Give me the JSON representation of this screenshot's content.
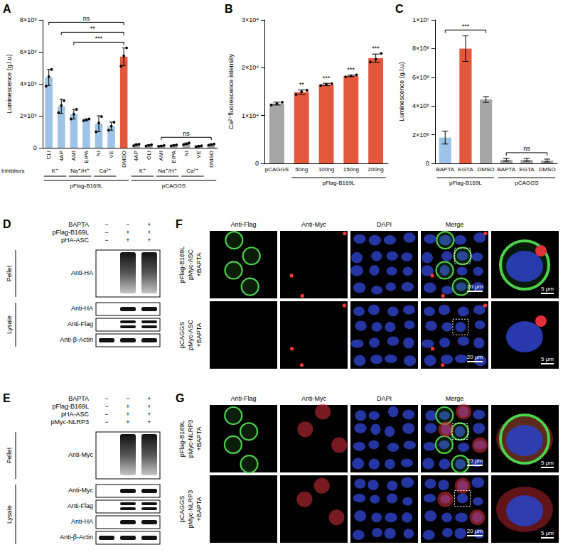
{
  "chart_data": [
    {
      "panel": "A",
      "type": "bar",
      "y_label": "Luminescence (g.l.u)",
      "categories": [
        "CLI",
        "4AP",
        "AMI",
        "EIPA",
        "NI",
        "VE",
        "DMSO",
        "4AP",
        "GLI",
        "AMI",
        "EIPA",
        "NI",
        "VE",
        "DMSO"
      ],
      "values": [
        4400000,
        2600000,
        2100000,
        1750000,
        1500000,
        1350000,
        5700000,
        200000,
        150000,
        120000,
        150000,
        250000,
        100000,
        200000
      ],
      "errors": [
        500000,
        450000,
        300000,
        60000,
        500000,
        250000,
        550000,
        30000,
        40000,
        30000,
        30000,
        50000,
        30000,
        40000
      ],
      "points": [
        [
          3850000,
          4450000,
          4900000
        ],
        [
          2200000,
          2650000,
          2950000
        ],
        [
          1800000,
          2100000,
          2400000
        ],
        [
          1700000,
          1750000,
          1800000
        ],
        [
          1000000,
          1550000,
          1950000
        ],
        [
          1100000,
          1350000,
          1600000
        ],
        [
          5100000,
          5750000,
          6250000
        ],
        [
          170000,
          200000,
          230000
        ],
        [
          110000,
          150000,
          190000
        ],
        [
          90000,
          120000,
          150000
        ],
        [
          120000,
          150000,
          180000
        ],
        [
          200000,
          250000,
          300000
        ],
        [
          70000,
          100000,
          130000
        ],
        [
          160000,
          200000,
          240000
        ]
      ],
      "colors": [
        "#9dc3e6",
        "#9dc3e6",
        "#9dc3e6",
        "#9dc3e6",
        "#9dc3e6",
        "#9dc3e6",
        "#e3573d",
        "#a6a6a6",
        "#a6a6a6",
        "#a6a6a6",
        "#a6a6a6",
        "#a6a6a6",
        "#a6a6a6",
        "#a6a6a6"
      ],
      "ylim": [
        0,
        8000000
      ],
      "yticks": [
        0,
        {
          "value": 2000000,
          "label": "2×10⁶"
        },
        {
          "value": 4000000,
          "label": "4×10⁶"
        },
        {
          "value": 6000000,
          "label": "6×10⁶"
        },
        {
          "value": 8000000,
          "label": "8×10⁶"
        }
      ],
      "grid": false,
      "row_label": "Inhibitors",
      "groups": [
        {
          "label": "pFlag-B169L",
          "categories": [
            "CLI",
            "4AP",
            "AMI",
            "EIPA",
            "NI",
            "VE",
            "DMSO"
          ],
          "subgroups": [
            {
              "label": "K⁺",
              "categories": [
                "CLI",
                "4AP"
              ]
            },
            {
              "label": "Na⁺/H⁺",
              "categories": [
                "AMI",
                "EIPA"
              ]
            },
            {
              "label": "Ca²⁺",
              "categories": [
                "NI",
                "VE"
              ]
            }
          ]
        },
        {
          "label": "pCAGGS",
          "categories": [
            "4AP",
            "GLI",
            "AMI",
            "EIPA",
            "NI",
            "VE",
            "DMSO"
          ],
          "subgroups": [
            {
              "label": "K⁺",
              "categories": [
                "4AP",
                "GLI"
              ]
            },
            {
              "label": "Na⁺/H⁺",
              "categories": [
                "AMI",
                "EIPA"
              ]
            },
            {
              "label": "Ca²⁺",
              "categories": [
                "NI",
                "VE"
              ]
            }
          ]
        }
      ],
      "significance": [
        {
          "label": "***",
          "group": "pFlag-B169L",
          "categories": [
            "AMI",
            "EIPA",
            "NI",
            "VE",
            "DMSO"
          ]
        },
        {
          "label": "**",
          "group": "pFlag-B169L",
          "categories": [
            "4AP",
            "AMI",
            "EIPA",
            "NI",
            "VE",
            "DMSO"
          ]
        },
        {
          "label": "ns",
          "group": "pFlag-B169L",
          "categories": [
            "CLI",
            "4AP",
            "AMI",
            "EIPA",
            "NI",
            "VE",
            "DMSO"
          ]
        },
        {
          "label": "ns",
          "group": "pCAGGS",
          "categories": [
            "AMI",
            "EIPA",
            "NI",
            "VE",
            "DMSO"
          ]
        }
      ]
    },
    {
      "panel": "B",
      "type": "bar",
      "y_label": "Ca²⁺fluorescence intensity",
      "categories": [
        "pCAGGS",
        "50ng",
        "100ng",
        "150ng",
        "200ng"
      ],
      "values": [
        12500,
        14900,
        16500,
        18300,
        22000
      ],
      "errors": [
        300,
        450,
        250,
        150,
        850
      ],
      "points": [
        [
          12200,
          12500,
          12800
        ],
        [
          14400,
          15000,
          15300
        ],
        [
          16300,
          16500,
          16700
        ],
        [
          18100,
          18300,
          18500
        ],
        [
          21200,
          21800,
          23000
        ]
      ],
      "colors": [
        "#a6a6a6",
        "#e3573d",
        "#e3573d",
        "#e3573d",
        "#e3573d"
      ],
      "ylim": [
        0,
        30000
      ],
      "yticks": [
        0,
        {
          "value": 10000,
          "label": "1×10⁴"
        },
        {
          "value": 20000,
          "label": "2×10⁴"
        },
        {
          "value": 30000,
          "label": "3×10⁴"
        }
      ],
      "grid": false,
      "groups": [
        {
          "label": "pFlag-B169L",
          "categories": [
            "50ng",
            "100ng",
            "150ng",
            "200ng"
          ]
        }
      ],
      "annotations": [
        null,
        "**",
        "***",
        "***",
        "***"
      ]
    },
    {
      "panel": "C",
      "type": "bar",
      "y_label": "Luminescence (g.l.u)",
      "categories": [
        "BAPTA",
        "EGTA",
        "DMSO",
        "BAPTA",
        "EGTA",
        "DMSO"
      ],
      "values": [
        1800000,
        8000000,
        4450000,
        250000,
        250000,
        200000
      ],
      "errors": [
        450000,
        900000,
        200000,
        100000,
        100000,
        100000
      ],
      "colors": [
        "#9dc3e6",
        "#e3573d",
        "#a6a6a6",
        "#a6a6a6",
        "#a6a6a6",
        "#a6a6a6"
      ],
      "ylim": [
        0,
        10000000
      ],
      "yticks": [
        0,
        {
          "value": 2000000,
          "label": "2×10⁶"
        },
        {
          "value": 4000000,
          "label": "4×10⁶"
        },
        {
          "value": 6000000,
          "label": "6×10⁶"
        },
        {
          "value": 8000000,
          "label": "8×10⁶"
        },
        {
          "value": 10000000,
          "label": "1×10⁷"
        }
      ],
      "grid": false,
      "groups": [
        {
          "label": "pFlag-B169L",
          "categories": [
            "BAPTA",
            "EGTA",
            "DMSO"
          ]
        },
        {
          "label": "pCAGGS",
          "categories": [
            "BAPTA",
            "EGTA",
            "DMSO"
          ]
        }
      ],
      "significance": [
        {
          "label": "***",
          "group": "pFlag-B169L",
          "categories": [
            "BAPTA",
            "EGTA",
            "DMSO"
          ]
        },
        {
          "label": "ns",
          "group": "pCAGGS",
          "categories": [
            "BAPTA",
            "EGTA",
            "DMSO"
          ]
        }
      ]
    }
  ],
  "blots": [
    {
      "panel": "D",
      "conditions": [
        {
          "label": "BAPTA",
          "signs": [
            "−",
            "−",
            "+"
          ]
        },
        {
          "label": "pFlag-B169L",
          "signs": [
            "−",
            "+",
            "+"
          ]
        },
        {
          "label": "pHA-ASC",
          "signs": [
            "−",
            "+",
            "+"
          ]
        }
      ],
      "sections": [
        {
          "label": "Pellet",
          "blots": [
            "Anti-HA"
          ]
        },
        {
          "label": "Lysate",
          "blots": [
            "Anti-HA",
            "Anti-Flag",
            "Anti-β-Actin"
          ]
        }
      ]
    },
    {
      "panel": "E",
      "conditions": [
        {
          "label": "BAPTA",
          "signs": [
            "−",
            "−",
            "+"
          ]
        },
        {
          "label": "pFlag-B169L",
          "signs": [
            "−",
            "+",
            "+"
          ]
        },
        {
          "label": "pHA-ASC",
          "signs": [
            "−",
            "+",
            "+"
          ]
        },
        {
          "label": "pMyc-NLRP3",
          "signs": [
            "−",
            "+",
            "+"
          ]
        }
      ],
      "sections": [
        {
          "label": "Pellet",
          "blots": [
            "Anti-Myc"
          ]
        },
        {
          "label": "Lysate",
          "blots": [
            "Anti-Myc",
            "Anti-Flag",
            "Anti-HA",
            "Anti-β-Actin"
          ]
        }
      ]
    }
  ],
  "micrographs": [
    {
      "panel": "F",
      "columns": [
        "Anti-Flag",
        "Anti-Myc",
        "DAPI",
        "Merge"
      ],
      "rows": [
        [
          "pFlag-B169L",
          "pMyc-ASC",
          "+BAPTA"
        ],
        [
          "pCAGGS",
          "pMyc-ASC",
          "+BAPTA"
        ]
      ],
      "scale_bar_labels": [
        "20 μm",
        "5 μm"
      ]
    },
    {
      "panel": "G",
      "columns": [
        "Anti-Flag",
        "Anti-Myc",
        "DAPI",
        "Merge"
      ],
      "rows": [
        [
          "pFlag-B169L",
          "pMyc-NLRP3",
          "+BAPTA"
        ],
        [
          "pCAGGS",
          "pMyc-NLRP3",
          "+BAPTA"
        ]
      ],
      "scale_bar_labels": [
        "20 μm",
        "5 μm"
      ]
    }
  ]
}
